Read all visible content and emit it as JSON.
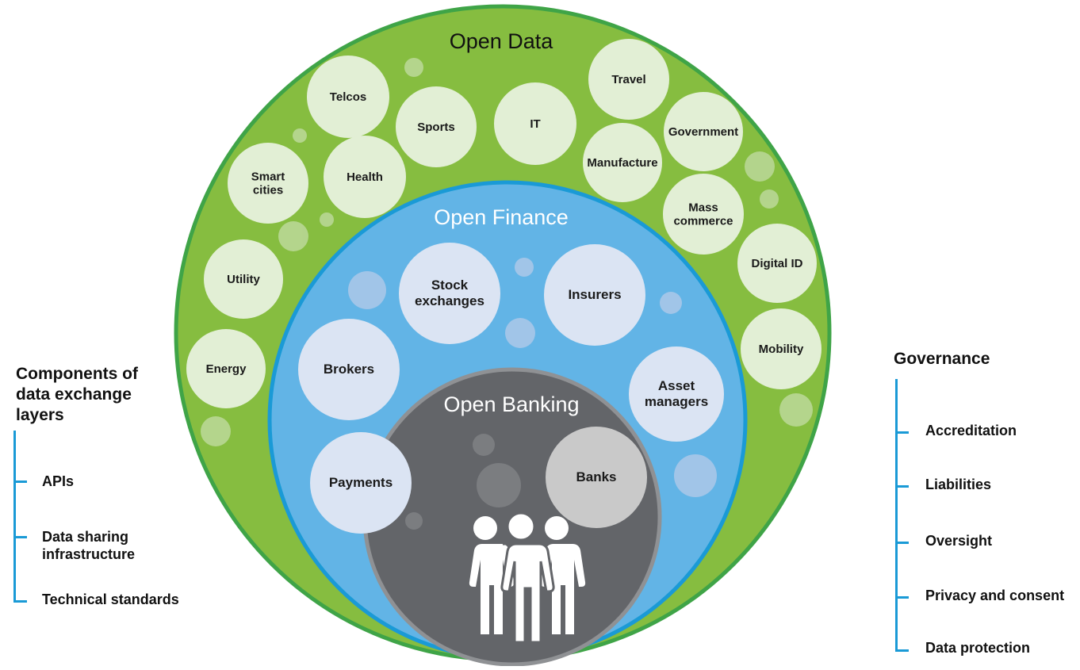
{
  "rings": {
    "open_data": {
      "title": "Open Data",
      "color": "#86bd40",
      "border": "#3fa447"
    },
    "open_finance": {
      "title": "Open Finance",
      "color": "#62b4e6",
      "border": "#1a9ad6"
    },
    "open_banking": {
      "title": "Open Banking",
      "color": "#636569",
      "border": "#8f9194"
    }
  },
  "open_data_sectors": [
    {
      "lines": [
        "Telcos"
      ]
    },
    {
      "lines": [
        "Sports"
      ]
    },
    {
      "lines": [
        "IT"
      ]
    },
    {
      "lines": [
        "Travel"
      ]
    },
    {
      "lines": [
        "Government"
      ]
    },
    {
      "lines": [
        "Manufacture"
      ]
    },
    {
      "lines": [
        "Smart",
        "cities"
      ]
    },
    {
      "lines": [
        "Health"
      ]
    },
    {
      "lines": [
        "Mass",
        "commerce"
      ]
    },
    {
      "lines": [
        "Digital ID"
      ]
    },
    {
      "lines": [
        "Utility"
      ]
    },
    {
      "lines": [
        "Mobility"
      ]
    },
    {
      "lines": [
        "Energy"
      ]
    }
  ],
  "open_finance_sectors": [
    {
      "lines": [
        "Stock",
        "exchanges"
      ]
    },
    {
      "lines": [
        "Insurers"
      ]
    },
    {
      "lines": [
        "Brokers"
      ]
    },
    {
      "lines": [
        "Asset",
        "managers"
      ]
    },
    {
      "lines": [
        "Payments"
      ]
    }
  ],
  "open_banking_sectors": [
    {
      "lines": [
        "Banks"
      ]
    }
  ],
  "people_icon": "people-group-icon",
  "left_panel": {
    "heading": [
      "Components of",
      "data exchange",
      "layers"
    ],
    "items": [
      {
        "lines": [
          "APIs"
        ]
      },
      {
        "lines": [
          "Data sharing",
          "infrastructure"
        ]
      },
      {
        "lines": [
          "Technical standards"
        ]
      }
    ]
  },
  "right_panel": {
    "heading": "Governance",
    "items": [
      "Accreditation",
      "Liabilities",
      "Oversight",
      "Privacy and consent",
      "Data protection"
    ]
  },
  "colors": {
    "bubble_green": "#e2efd5",
    "bubble_blue": "#dbe4f3",
    "bubble_gray": "#c9c9c9",
    "accent_blue": "#1a9ad6"
  }
}
